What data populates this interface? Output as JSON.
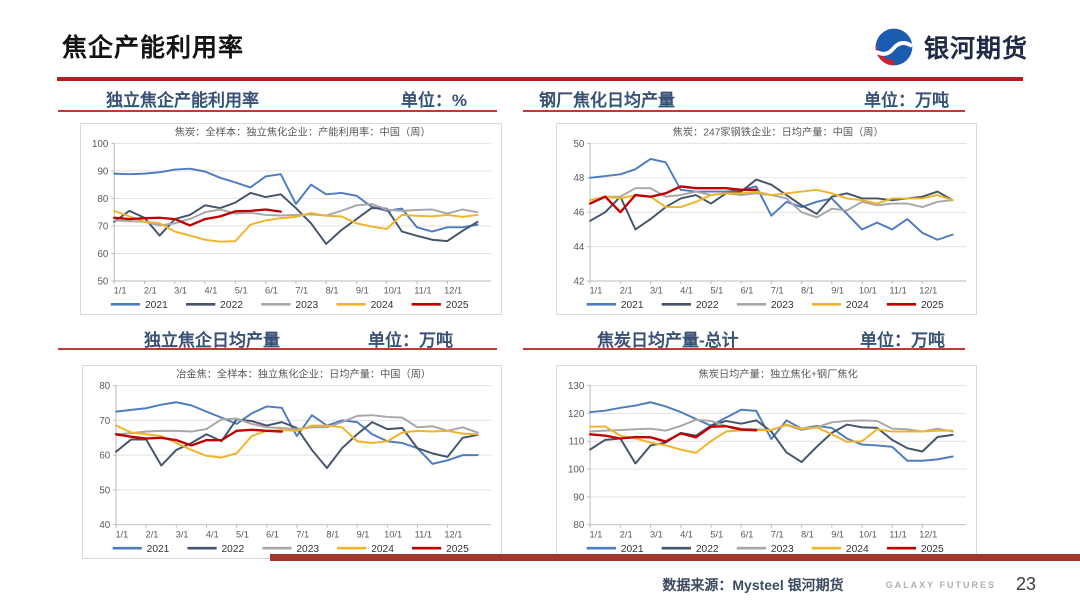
{
  "page": {
    "title": "焦企产能利用率"
  },
  "logo": {
    "name": "银河期货"
  },
  "footer": {
    "source": "数据来源：Mysteel 银河期货",
    "brand": "GALAXY FUTURES",
    "page_number": "23"
  },
  "colors": {
    "2021": "#4d7cc1",
    "2022": "#44546a",
    "2023": "#a7a7a7",
    "2024": "#f0b429",
    "2025": "#c00000",
    "accent_red": "#ab2422",
    "rule_red": "#c23a32",
    "footer_bar_red": "#a2362e",
    "header_text": "#3a5176"
  },
  "chart_data": [
    {
      "type": "line",
      "header": "独立焦企产能利用率",
      "unit_label": "单位：%",
      "inner_title": "焦炭：全样本：独立焦化企业：产能利用率：中国（周）",
      "ylim": [
        50,
        100
      ],
      "yticks": [
        50,
        60,
        70,
        80,
        90,
        100
      ],
      "xticks": [
        "1/1",
        "2/1",
        "3/1",
        "4/1",
        "5/1",
        "6/1",
        "7/1",
        "8/1",
        "9/1",
        "10/1",
        "11/1",
        "12/1"
      ],
      "legend_position": "bottom",
      "grid": true,
      "series": [
        {
          "name": "2021",
          "x_start": 1,
          "x_step": 0.5,
          "values": [
            89,
            88.8,
            89,
            89.5,
            90.5,
            90.8,
            89.8,
            87.5,
            85.8,
            84,
            88,
            88.8,
            78,
            85,
            81.5,
            82,
            81,
            77,
            75.5,
            76.3,
            69.5,
            68,
            69.5,
            69.5,
            70.5
          ]
        },
        {
          "name": "2022",
          "x_start": 1,
          "x_step": 0.5,
          "values": [
            71.5,
            75.5,
            73,
            66.5,
            72.5,
            74,
            77.5,
            76.5,
            78.5,
            82,
            80.5,
            81.5,
            76.5,
            71,
            63.5,
            68.5,
            72.5,
            76.5,
            76.3,
            68,
            66.4,
            65,
            64.5,
            68.2,
            71.5
          ]
        },
        {
          "name": "2023",
          "x_start": 1,
          "x_step": 0.5,
          "values": [
            72,
            71.8,
            71.5,
            70.2,
            71,
            72.5,
            75,
            76,
            74.5,
            74.8,
            74,
            73.8,
            74,
            74.2,
            73.8,
            75.5,
            77.5,
            78,
            76,
            75.5,
            75.8,
            76,
            74.5,
            76,
            75
          ]
        },
        {
          "name": "2024",
          "x_start": 1,
          "x_step": 0.5,
          "values": [
            75.5,
            73.5,
            71.5,
            71,
            68,
            66.5,
            65,
            64.3,
            64.5,
            70.5,
            72,
            72.8,
            73.3,
            74.7,
            73.7,
            73.5,
            71,
            69.8,
            68.9,
            74,
            73.7,
            73.5,
            74,
            73.3,
            74
          ]
        },
        {
          "name": "2025",
          "x_start": 1,
          "x_step": 0.5,
          "values": [
            73,
            72.5,
            72.8,
            73,
            72.5,
            70.2,
            72.5,
            73.5,
            75.3,
            75.5,
            76,
            75.2
          ]
        }
      ]
    },
    {
      "type": "line",
      "header": "钢厂焦化日均产量",
      "unit_label": "单位：万吨",
      "inner_title": "焦炭：247家钢铁企业：日均产量：中国（周）",
      "ylim": [
        42,
        50
      ],
      "yticks": [
        42,
        44,
        46,
        48,
        50
      ],
      "xticks": [
        "1/1",
        "2/1",
        "3/1",
        "4/1",
        "5/1",
        "6/1",
        "7/1",
        "8/1",
        "9/1",
        "10/1",
        "11/1",
        "12/1"
      ],
      "legend_position": "bottom",
      "grid": true,
      "series": [
        {
          "name": "2021",
          "x_start": 1,
          "x_step": 0.5,
          "values": [
            48,
            48.1,
            48.2,
            48.5,
            49.1,
            48.9,
            47.3,
            47.2,
            47.2,
            47.2,
            47.3,
            47.5,
            45.8,
            46.6,
            46.3,
            46.6,
            46.8,
            45.9,
            45,
            45.4,
            45,
            45.6,
            44.8,
            44.4,
            44.7
          ]
        },
        {
          "name": "2022",
          "x_start": 1,
          "x_step": 0.5,
          "values": [
            45.5,
            46,
            46.9,
            45,
            45.6,
            46.3,
            46.8,
            47,
            46.5,
            47.1,
            47.2,
            47.9,
            47.6,
            47,
            46.4,
            45.9,
            46.9,
            47.1,
            46.8,
            46.8,
            46.7,
            46.8,
            46.9,
            47.2,
            46.7
          ]
        },
        {
          "name": "2023",
          "x_start": 1,
          "x_step": 0.5,
          "values": [
            46.7,
            46.9,
            46.9,
            47.4,
            47.4,
            46.9,
            47,
            47.2,
            47,
            47.1,
            47,
            47.1,
            47,
            46.8,
            46,
            45.7,
            46.2,
            46.1,
            46.6,
            46.4,
            46.5,
            46.5,
            46.3,
            46.6,
            46.7
          ]
        },
        {
          "name": "2024",
          "x_start": 1,
          "x_step": 0.5,
          "values": [
            46.7,
            46.9,
            46.8,
            47,
            46.9,
            46.3,
            46.3,
            46.6,
            47,
            47.1,
            47.1,
            47.2,
            47,
            47.1,
            47.2,
            47.3,
            47.1,
            46.8,
            46.7,
            46.5,
            46.8,
            46.8,
            46.8,
            47,
            46.7
          ]
        },
        {
          "name": "2025",
          "x_start": 1,
          "x_step": 0.5,
          "values": [
            46.5,
            46.9,
            46,
            47,
            46.9,
            47.1,
            47.5,
            47.4,
            47.4,
            47.4,
            47.3,
            47.3
          ]
        }
      ]
    },
    {
      "type": "line",
      "header": "独立焦企日均产量",
      "unit_label": "单位：万吨",
      "inner_title": "冶金焦：全样本：独立焦化企业：日均产量：中国（周）",
      "ylim": [
        40,
        80
      ],
      "yticks": [
        40,
        50,
        60,
        70,
        80
      ],
      "xticks": [
        "1/1",
        "2/1",
        "3/1",
        "4/1",
        "5/1",
        "6/1",
        "7/1",
        "8/1",
        "9/1",
        "10/1",
        "11/1",
        "12/1"
      ],
      "legend_position": "bottom",
      "grid": true,
      "series": [
        {
          "name": "2021",
          "x_start": 1,
          "x_step": 0.5,
          "values": [
            72.5,
            73,
            73.5,
            74.5,
            75.2,
            74.3,
            72.5,
            70.8,
            69,
            72,
            74,
            73.6,
            65.5,
            71.5,
            68.5,
            70,
            69.5,
            66,
            64,
            63.5,
            62,
            57.5,
            58.5,
            60,
            60
          ]
        },
        {
          "name": "2022",
          "x_start": 1,
          "x_step": 0.5,
          "values": [
            61,
            64.5,
            64.5,
            57,
            61.5,
            63.5,
            66,
            64,
            70.3,
            69.8,
            68.5,
            69.5,
            67.8,
            61.5,
            56.3,
            62,
            66,
            69.5,
            67.5,
            67.8,
            62,
            60.5,
            59.5,
            65,
            65.8
          ]
        },
        {
          "name": "2023",
          "x_start": 1,
          "x_step": 0.5,
          "values": [
            66,
            66.3,
            66.8,
            67,
            67,
            66.8,
            67.5,
            70.3,
            70.5,
            69,
            68,
            67.8,
            67.5,
            68,
            68,
            69.5,
            71.3,
            71.5,
            71,
            70.8,
            68,
            68.3,
            67,
            68,
            66.5
          ]
        },
        {
          "name": "2024",
          "x_start": 1,
          "x_step": 0.5,
          "values": [
            68.5,
            66.5,
            66,
            65.5,
            63.5,
            61.5,
            59.8,
            59.3,
            60.5,
            65.5,
            67,
            67.2,
            67,
            68.5,
            68.5,
            68,
            64,
            63.5,
            64,
            66.5,
            67,
            66.8,
            67,
            66.2,
            66
          ]
        },
        {
          "name": "2025",
          "x_start": 1,
          "x_step": 0.5,
          "values": [
            66,
            65.3,
            64.8,
            65,
            64.3,
            62.8,
            64.3,
            64.3,
            67,
            67.3,
            67,
            66.8
          ]
        }
      ]
    },
    {
      "type": "line",
      "header": "焦炭日均产量-总计",
      "unit_label": "单位：万吨",
      "inner_title": "焦炭日均产量：独立焦化+钢厂焦化",
      "ylim": [
        80,
        130
      ],
      "yticks": [
        80,
        90,
        100,
        110,
        120,
        130
      ],
      "xticks": [
        "1/1",
        "2/1",
        "3/1",
        "4/1",
        "5/1",
        "6/1",
        "7/1",
        "8/1",
        "9/1",
        "10/1",
        "11/1",
        "12/1"
      ],
      "legend_position": "bottom",
      "grid": true,
      "series": [
        {
          "name": "2021",
          "x_start": 1,
          "x_step": 0.5,
          "values": [
            120.5,
            121,
            122,
            122.8,
            124,
            122.5,
            120.5,
            118,
            115.6,
            118.5,
            121.3,
            120.9,
            110.8,
            117.5,
            114.5,
            115.5,
            114.8,
            111,
            108.8,
            108.5,
            108,
            103,
            103,
            103.5,
            104.5
          ]
        },
        {
          "name": "2022",
          "x_start": 1,
          "x_step": 0.5,
          "values": [
            107,
            110.5,
            111,
            102,
            108.5,
            109.5,
            113,
            112,
            115.6,
            117.3,
            116.3,
            117.5,
            113.5,
            106,
            102.5,
            108,
            113,
            116,
            115,
            114.8,
            110.5,
            107.5,
            106.3,
            111.5,
            112.3
          ]
        },
        {
          "name": "2023",
          "x_start": 1,
          "x_step": 0.5,
          "values": [
            113.5,
            113.8,
            114,
            114.3,
            114.5,
            113.8,
            115.5,
            117.7,
            117.3,
            115.5,
            114.5,
            114.3,
            114,
            115.8,
            114,
            115,
            116.8,
            117.3,
            117.5,
            117.3,
            114.5,
            114.3,
            113.5,
            114.5,
            113.5
          ]
        },
        {
          "name": "2024",
          "x_start": 1,
          "x_step": 0.5,
          "values": [
            115.2,
            115.3,
            112,
            111,
            109.5,
            108.5,
            107,
            105.8,
            110,
            113.5,
            113.9,
            114,
            114,
            116,
            114.5,
            115,
            112.5,
            109.8,
            110,
            114.3,
            113.5,
            113.5,
            113.5,
            113.8,
            113.8
          ]
        },
        {
          "name": "2025",
          "x_start": 1,
          "x_step": 0.5,
          "values": [
            112.5,
            112,
            111,
            111.5,
            111.4,
            109.9,
            112.8,
            111.4,
            115.2,
            115.4,
            114.2,
            113.9
          ]
        }
      ]
    }
  ]
}
